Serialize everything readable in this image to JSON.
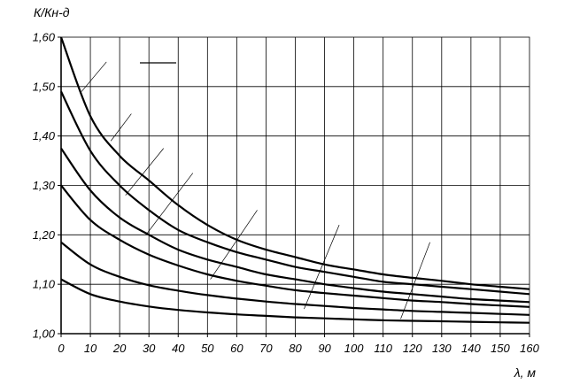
{
  "chart_data": {
    "type": "line",
    "title": "",
    "xlabel": "λ, м",
    "ylabel": "К/Кн-д",
    "xlim": [
      0,
      160
    ],
    "ylim": [
      1.0,
      1.6
    ],
    "x_ticks": [
      0,
      10,
      20,
      30,
      40,
      50,
      60,
      70,
      80,
      90,
      100,
      110,
      120,
      130,
      140,
      150,
      160
    ],
    "x_tick_labels": [
      "0",
      "10",
      "20",
      "30",
      "40",
      "50",
      "60",
      "70",
      "80",
      "90",
      "100",
      "110",
      "120",
      "130",
      "140",
      "150",
      "160"
    ],
    "y_ticks": [
      1.0,
      1.1,
      1.2,
      1.3,
      1.4,
      1.5,
      1.6
    ],
    "y_tick_labels": [
      "1,00",
      "1,10",
      "1,20",
      "1,30",
      "1,40",
      "1,50",
      "1,60"
    ],
    "grid": true,
    "legend_line": true,
    "x": [
      0,
      10,
      20,
      30,
      40,
      50,
      60,
      70,
      80,
      90,
      100,
      110,
      120,
      130,
      140,
      150,
      160
    ],
    "series": [
      {
        "values": [
          1.6,
          1.44,
          1.36,
          1.31,
          1.26,
          1.22,
          1.19,
          1.17,
          1.155,
          1.14,
          1.13,
          1.12,
          1.113,
          1.107,
          1.1,
          1.095,
          1.09
        ]
      },
      {
        "values": [
          1.49,
          1.37,
          1.3,
          1.25,
          1.21,
          1.185,
          1.165,
          1.15,
          1.135,
          1.125,
          1.115,
          1.105,
          1.1,
          1.095,
          1.09,
          1.085,
          1.08
        ]
      },
      {
        "values": [
          1.375,
          1.29,
          1.235,
          1.2,
          1.17,
          1.15,
          1.135,
          1.12,
          1.11,
          1.1,
          1.092,
          1.085,
          1.08,
          1.075,
          1.07,
          1.067,
          1.064
        ]
      },
      {
        "values": [
          1.3,
          1.23,
          1.19,
          1.16,
          1.138,
          1.12,
          1.107,
          1.097,
          1.088,
          1.082,
          1.077,
          1.072,
          1.067,
          1.064,
          1.06,
          1.057,
          1.054
        ]
      },
      {
        "values": [
          1.185,
          1.14,
          1.115,
          1.098,
          1.087,
          1.078,
          1.071,
          1.065,
          1.06,
          1.056,
          1.052,
          1.049,
          1.046,
          1.044,
          1.042,
          1.04,
          1.038
        ]
      },
      {
        "values": [
          1.11,
          1.08,
          1.065,
          1.055,
          1.048,
          1.043,
          1.039,
          1.036,
          1.033,
          1.031,
          1.029,
          1.027,
          1.026,
          1.025,
          1.024,
          1.023,
          1.022
        ]
      }
    ],
    "reference_lines": [
      {
        "x": [
          7,
          15.5
        ],
        "y": [
          1.49,
          1.55
        ]
      },
      {
        "x": [
          17,
          24
        ],
        "y": [
          1.39,
          1.445
        ]
      },
      {
        "x": [
          22,
          35
        ],
        "y": [
          1.28,
          1.375
        ]
      },
      {
        "x": [
          29,
          45
        ],
        "y": [
          1.2,
          1.325
        ]
      },
      {
        "x": [
          51,
          67
        ],
        "y": [
          1.11,
          1.25
        ]
      },
      {
        "x": [
          83,
          95
        ],
        "y": [
          1.05,
          1.22
        ]
      },
      {
        "x": [
          116,
          126
        ],
        "y": [
          1.03,
          1.185
        ]
      }
    ]
  }
}
